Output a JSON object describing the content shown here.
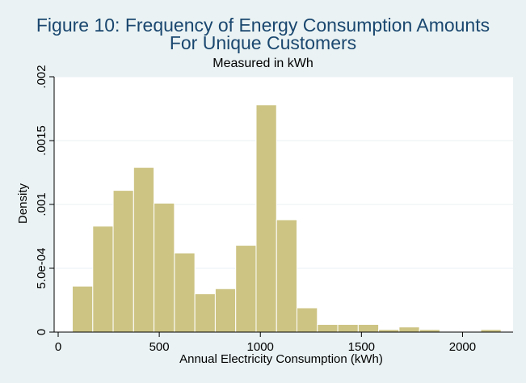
{
  "chart_data": {
    "type": "bar",
    "title": "Figure 10: Frequency of Energy Consumption Amounts",
    "title_line2": "For Unique Customers",
    "subtitle": "Measured in kWh",
    "xlabel": "Annual Electricity Consumption (kWh)",
    "ylabel": "Density",
    "xlim": [
      -20,
      2250
    ],
    "ylim": [
      0,
      0.002
    ],
    "xticks": [
      {
        "value": 0,
        "label": "0"
      },
      {
        "value": 500,
        "label": "500"
      },
      {
        "value": 1000,
        "label": "1000"
      },
      {
        "value": 1500,
        "label": "1500"
      },
      {
        "value": 2000,
        "label": "2000"
      }
    ],
    "yticks": [
      {
        "value": 0,
        "label": "0"
      },
      {
        "value": 0.0005,
        "label": "5.0e-04"
      },
      {
        "value": 0.001,
        "label": ".001"
      },
      {
        "value": 0.0015,
        "label": ".0015"
      },
      {
        "value": 0.002,
        "label": ".002"
      }
    ],
    "grid": true,
    "colors": {
      "background": "#eaf2f3",
      "plot_area": "#ffffff",
      "bar_fill": "#cdc484",
      "bar_stroke": "#ffffff",
      "title": "#1a476f",
      "grid": "#eaf2f3"
    },
    "bins": [
      {
        "x0": 70,
        "x1": 171,
        "value": 0.00036
      },
      {
        "x0": 171,
        "x1": 272,
        "value": 0.00083
      },
      {
        "x0": 272,
        "x1": 373,
        "value": 0.00111
      },
      {
        "x0": 373,
        "x1": 474,
        "value": 0.00129
      },
      {
        "x0": 474,
        "x1": 575,
        "value": 0.00101
      },
      {
        "x0": 575,
        "x1": 676,
        "value": 0.00062
      },
      {
        "x0": 676,
        "x1": 777,
        "value": 0.0003
      },
      {
        "x0": 777,
        "x1": 878,
        "value": 0.00034
      },
      {
        "x0": 878,
        "x1": 979,
        "value": 0.00068
      },
      {
        "x0": 979,
        "x1": 1080,
        "value": 0.00178
      },
      {
        "x0": 1080,
        "x1": 1181,
        "value": 0.00088
      },
      {
        "x0": 1181,
        "x1": 1282,
        "value": 0.00019
      },
      {
        "x0": 1282,
        "x1": 1383,
        "value": 6e-05
      },
      {
        "x0": 1383,
        "x1": 1484,
        "value": 6e-05
      },
      {
        "x0": 1484,
        "x1": 1585,
        "value": 6e-05
      },
      {
        "x0": 1585,
        "x1": 1686,
        "value": 2e-05
      },
      {
        "x0": 1686,
        "x1": 1787,
        "value": 4e-05
      },
      {
        "x0": 1787,
        "x1": 1888,
        "value": 2e-05
      },
      {
        "x0": 1888,
        "x1": 1989,
        "value": 0.0
      },
      {
        "x0": 1989,
        "x1": 2090,
        "value": 0.0
      },
      {
        "x0": 2090,
        "x1": 2191,
        "value": 2e-05
      }
    ]
  }
}
